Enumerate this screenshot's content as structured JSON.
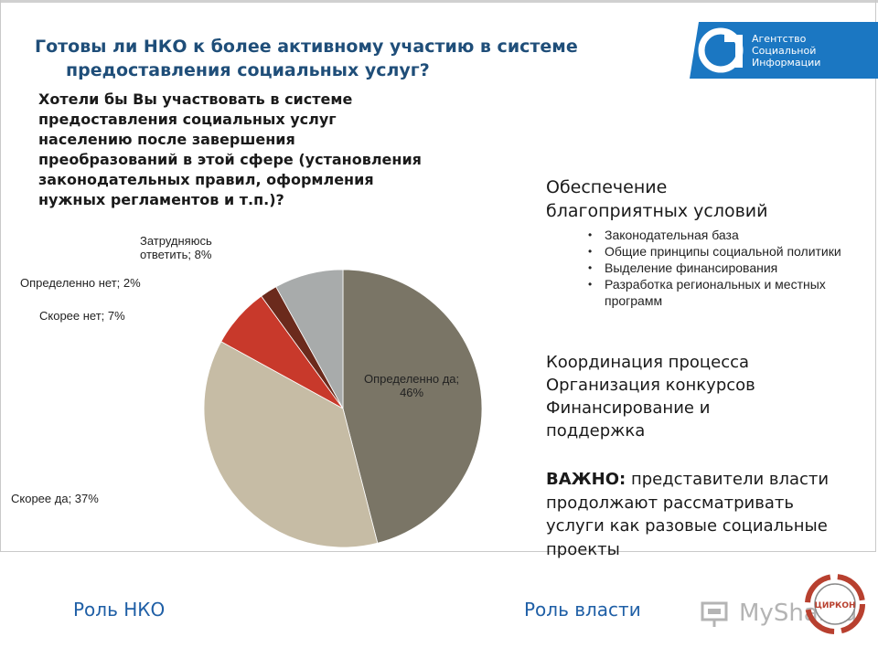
{
  "title": {
    "line1": "Готовы ли НКО к более активному участию в системе",
    "line2": "предоставления социальных услуг?"
  },
  "logo": {
    "line1": "Агентство",
    "line2": "Социальной",
    "line3": "Информации"
  },
  "question": "Хотели бы Вы участвовать в системе предоставления социальных услуг населению после завершения преобразований в этой сфере (установления законодательных правил, оформления нужных регламентов и т.п.)?",
  "chart_data": {
    "type": "pie",
    "slices": [
      {
        "label": "Определенно да; 46%",
        "value": 46,
        "color": "#7a7566"
      },
      {
        "label": "Скорее да; 37%",
        "value": 37,
        "color": "#c6bca5"
      },
      {
        "label": "Скорее нет; 7%",
        "value": 7,
        "color": "#c8392b"
      },
      {
        "label": "Определенно нет; 2%",
        "value": 2,
        "color": "#6b2a1c"
      },
      {
        "label": "Затрудняюсь ответить; 8%",
        "value": 8,
        "color": "#a8abab"
      }
    ]
  },
  "labels": {
    "def_yes_line1": "Определенно да;",
    "def_yes_line2": "46%",
    "rather_yes": "Скорее да; 37%",
    "rather_no": "Скорее нет; 7%",
    "def_no": "Определенно нет; 2%",
    "hard_line1": "Затрудняюсь",
    "hard_line2": "ответить; 8%"
  },
  "right": {
    "section_title_line1": "Обеспечение",
    "section_title_line2": "благоприятных условий",
    "bullets": [
      "Законодательная база",
      "Общие принципы социальной политики",
      "Выделение финансирования",
      "Разработка региональных и местных программ"
    ],
    "coordination": [
      "Координация процесса",
      "Организация конкурсов",
      "Финансирование  и",
      "поддержка"
    ],
    "important_label": "ВАЖНО:",
    "important_text": " представители власти продолжают рассматривать услуги как разовые социальные проекты"
  },
  "footer": {
    "ngo_role": "Роль НКО",
    "gov_role": "Роль власти"
  },
  "watermark": {
    "text": "MyShared",
    "seal_text": "ЦИРКОН"
  }
}
